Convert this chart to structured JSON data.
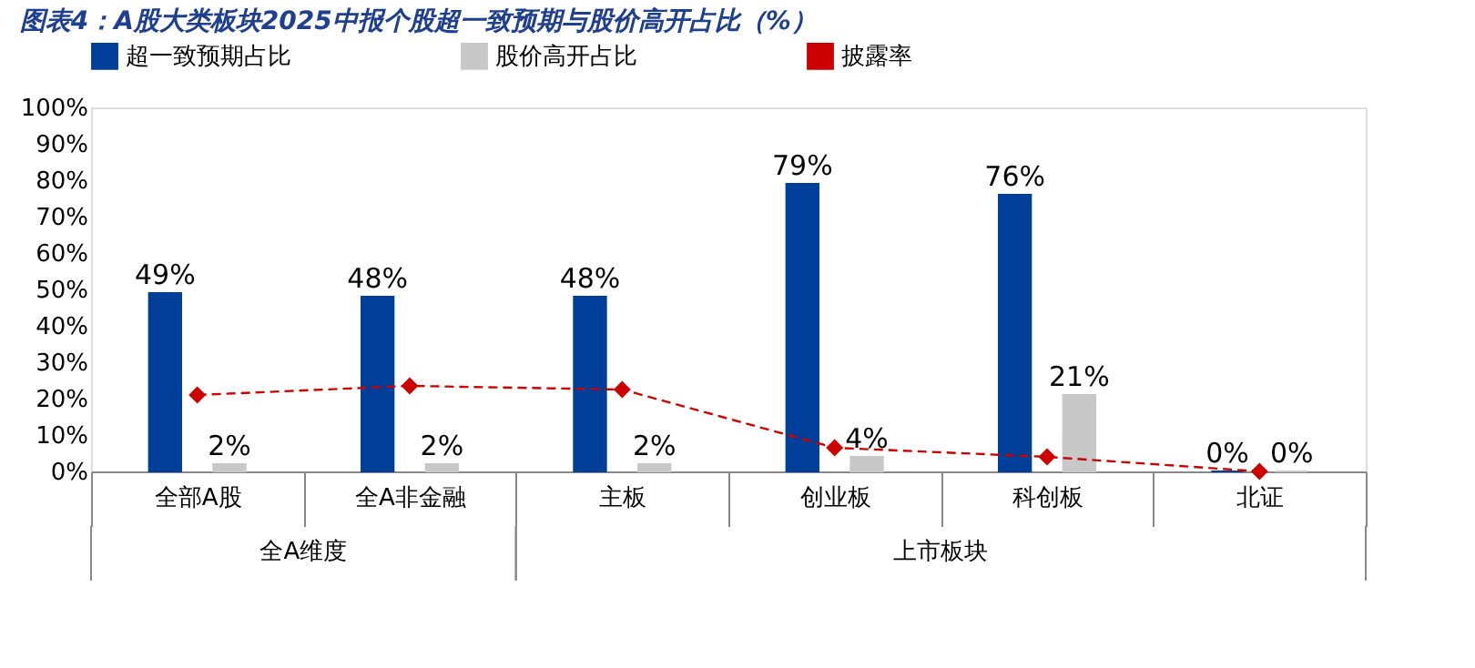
{
  "chart_data": {
    "type": "bar",
    "title": "图表4：A股大类板块2025中报个股超一致预期与股价高开占比（%）",
    "categories": [
      "全部A股",
      "全A非金融",
      "主板",
      "创业板",
      "科创板",
      "北证"
    ],
    "series": [
      {
        "name": "超一致预期占比",
        "color": "#003f99",
        "values": [
          49,
          48,
          48,
          79,
          76,
          0
        ],
        "value_labels": [
          "49%",
          "48%",
          "48%",
          "79%",
          "76%",
          "0%"
        ]
      },
      {
        "name": "股价高开占比",
        "color": "#c8c8c8",
        "values": [
          2,
          2,
          2,
          4,
          21,
          0
        ],
        "value_labels": [
          "2%",
          "2%",
          "2%",
          "4%",
          "21%",
          "0%"
        ]
      },
      {
        "name": "披露率",
        "color": "#cc0000",
        "type": "line",
        "marker": "diamond",
        "line_style": "dashed",
        "values": [
          21,
          23.5,
          22.5,
          6.5,
          4,
          0
        ]
      }
    ],
    "ylim": [
      0,
      100
    ],
    "yticks": [
      {
        "value": 0,
        "label": "0%"
      },
      {
        "value": 10,
        "label": "10%"
      },
      {
        "value": 20,
        "label": "20%"
      },
      {
        "value": 30,
        "label": "30%"
      },
      {
        "value": 40,
        "label": "40%"
      },
      {
        "value": 50,
        "label": "50%"
      },
      {
        "value": 60,
        "label": "60%"
      },
      {
        "value": 70,
        "label": "70%"
      },
      {
        "value": 80,
        "label": "80%"
      },
      {
        "value": 90,
        "label": "90%"
      },
      {
        "value": 100,
        "label": "100%"
      }
    ],
    "annotations": [
      "全A维度",
      "上市板块"
    ],
    "legend": "top",
    "grid": false
  }
}
